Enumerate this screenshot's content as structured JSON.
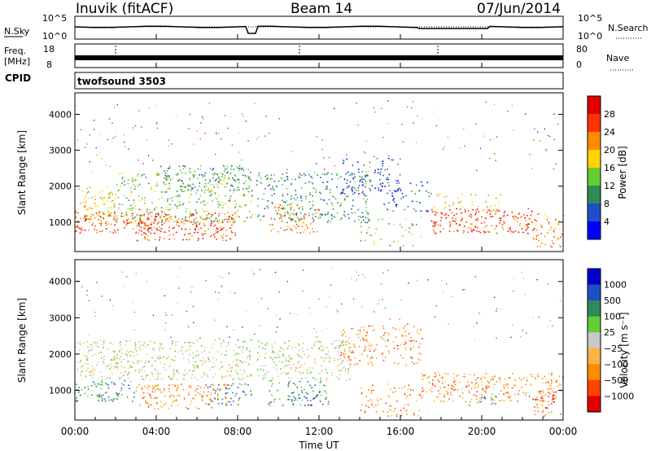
{
  "header": {
    "station": "Inuvik (fitACF)",
    "beam": "Beam 14",
    "date": "07/Jun/2014"
  },
  "status_panel": {
    "nsky_label": "N.Sky",
    "nsearch_label": "N.Search",
    "nsky_ticks": [
      "10^5",
      "10^0"
    ],
    "nsearch_ticks": [
      "10^5",
      "10^0"
    ],
    "freq_label_line1": "Freq.",
    "freq_label_line2": "[MHz]",
    "freq_ticks": [
      "18",
      "8"
    ],
    "nave_label": "Nave",
    "nave_ticks": [
      "80",
      "0"
    ],
    "cpid_label": "CPID",
    "cpid_value": "twofsound 3503"
  },
  "chart_data": [
    {
      "type": "heatmap",
      "name": "power",
      "xlabel": "Time UT",
      "ylabel": "Slant Range [km]",
      "xlim_hours": [
        0,
        24
      ],
      "ylim": [
        180,
        4600
      ],
      "yticks": [
        "1000",
        "2000",
        "3000",
        "4000"
      ],
      "colorbar_label": "Power [dB]",
      "colorbar_ticks": [
        "28",
        "24",
        "20",
        "16",
        "12",
        "8",
        "4"
      ],
      "colorbar_colors": [
        "#0000ff",
        "#1f4fc8",
        "#2e8b57",
        "#66cc33",
        "#ffd400",
        "#ff8c00",
        "#ff3300",
        "#e00000"
      ],
      "scatter_bands": [
        {
          "t0": 0.0,
          "t1": 2.0,
          "r0": 1000,
          "r1": 2000,
          "level": 4,
          "d": 0.6
        },
        {
          "t0": 0.0,
          "t1": 4.0,
          "r0": 700,
          "r1": 1300,
          "level": 6,
          "d": 0.7
        },
        {
          "t0": 3.0,
          "t1": 8.0,
          "r0": 500,
          "r1": 1300,
          "level": 6,
          "d": 0.7
        },
        {
          "t0": 2.0,
          "t1": 8.7,
          "r0": 1000,
          "r1": 2400,
          "level": 3,
          "d": 0.5
        },
        {
          "t0": 4.0,
          "t1": 8.7,
          "r0": 1800,
          "r1": 2600,
          "level": 2,
          "d": 0.4
        },
        {
          "t0": 8.7,
          "t1": 14.5,
          "r0": 1000,
          "r1": 2400,
          "level": 2,
          "d": 0.5
        },
        {
          "t0": 9.5,
          "t1": 12.0,
          "r0": 700,
          "r1": 1500,
          "level": 5,
          "d": 0.5
        },
        {
          "t0": 13.0,
          "t1": 16.0,
          "r0": 1800,
          "r1": 2800,
          "level": 1,
          "d": 0.4
        },
        {
          "t0": 15.0,
          "t1": 17.5,
          "r0": 1300,
          "r1": 2200,
          "level": 1,
          "d": 0.3
        },
        {
          "t0": 14.0,
          "t1": 17.0,
          "r0": 300,
          "r1": 1200,
          "level": 3,
          "d": 0.2
        },
        {
          "t0": 17.5,
          "t1": 22.5,
          "r0": 700,
          "r1": 1400,
          "level": 6,
          "d": 0.7
        },
        {
          "t0": 17.5,
          "t1": 21.0,
          "r0": 1300,
          "r1": 1800,
          "level": 4,
          "d": 0.3
        },
        {
          "t0": 22.5,
          "t1": 24.0,
          "r0": 300,
          "r1": 1300,
          "level": 5,
          "d": 0.5
        }
      ]
    },
    {
      "type": "heatmap",
      "name": "velocity",
      "xlabel": "Time UT",
      "ylabel": "Slant Range [km]",
      "xlim_hours": [
        0,
        24
      ],
      "ylim": [
        180,
        4600
      ],
      "yticks": [
        "1000",
        "2000",
        "3000",
        "4000"
      ],
      "xticks": [
        "00:00",
        "04:00",
        "08:00",
        "12:00",
        "16:00",
        "20:00",
        "00:00"
      ],
      "colorbar_label": "Velocity [m s⁻¹]",
      "colorbar_ticks": [
        "1000",
        "500",
        "100",
        "25",
        "−25",
        "−100",
        "−500",
        "−1000"
      ],
      "colorbar_colors": [
        "#e00000",
        "#ff4400",
        "#ff8c00",
        "#ffb347",
        "#c8c8c8",
        "#66cc33",
        "#2e8b57",
        "#1f4fc8",
        "#0000cc"
      ],
      "scatter_bands": [
        {
          "t0": 0.0,
          "t1": 8.7,
          "r0": 1300,
          "r1": 2400,
          "level": 4,
          "d": 0.6
        },
        {
          "t0": 0.0,
          "t1": 3.0,
          "r0": 700,
          "r1": 1300,
          "level": 6,
          "d": 0.6
        },
        {
          "t0": 3.0,
          "t1": 7.5,
          "r0": 500,
          "r1": 1200,
          "level": 2,
          "d": 0.6
        },
        {
          "t0": 6.5,
          "t1": 8.7,
          "r0": 600,
          "r1": 1200,
          "level": 6,
          "d": 0.5
        },
        {
          "t0": 8.7,
          "t1": 13.5,
          "r0": 1300,
          "r1": 2400,
          "level": 4,
          "d": 0.6
        },
        {
          "t0": 9.5,
          "t1": 12.5,
          "r0": 600,
          "r1": 1300,
          "level": 6,
          "d": 0.5
        },
        {
          "t0": 11.0,
          "t1": 12.0,
          "r0": 600,
          "r1": 1100,
          "level": 7,
          "d": 0.4
        },
        {
          "t0": 13.0,
          "t1": 17.0,
          "r0": 1700,
          "r1": 2800,
          "level": 2,
          "d": 0.5
        },
        {
          "t0": 14.0,
          "t1": 17.0,
          "r0": 300,
          "r1": 1200,
          "level": 2,
          "d": 0.4
        },
        {
          "t0": 17.0,
          "t1": 24.0,
          "r0": 700,
          "r1": 1500,
          "level": 2,
          "d": 0.6
        },
        {
          "t0": 19.0,
          "t1": 21.0,
          "r0": 600,
          "r1": 1000,
          "level": 6,
          "d": 0.3
        },
        {
          "t0": 22.5,
          "t1": 24.0,
          "r0": 300,
          "r1": 1000,
          "level": 1,
          "d": 0.5
        }
      ]
    }
  ]
}
